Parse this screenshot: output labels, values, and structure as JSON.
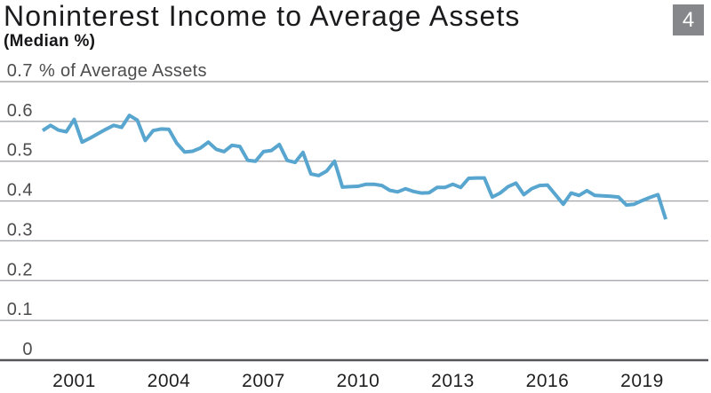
{
  "header": {
    "title": "Noninterest Income to Average Assets",
    "subtitle": "(Median %)",
    "slide_number": "4"
  },
  "colors": {
    "line": "#58a6cf",
    "gridline": "#a6a8ab",
    "baseline": "#55565a",
    "y_tick_text": "#4d4d4f",
    "x_tick_text": "#1f1f21",
    "title_text": "#1b1b1d",
    "badge_bg": "#85878a",
    "badge_text": "#ffffff"
  },
  "chart_data": {
    "type": "line",
    "title": "Noninterest Income to Average Assets",
    "subtitle": "(Median %)",
    "grid": "horizontal",
    "legend": "none",
    "ylim": [
      0,
      0.7
    ],
    "y_axis": {
      "ticks": [
        "0",
        "0.1",
        "0.2",
        "0.3",
        "0.4",
        "0.5",
        "0.6",
        "0.7"
      ],
      "unit_label": "% of Average Assets",
      "top_line_label": "0.7 % of Average Assets"
    },
    "x_axis": {
      "ticks": [
        "2001",
        "2004",
        "2007",
        "2010",
        "2013",
        "2016",
        "2019"
      ],
      "start": "2000 Q1",
      "end": "2019 Q4",
      "frequency": "quarterly"
    },
    "series": [
      {
        "name": "Median noninterest income to average assets (%)",
        "values": [
          0.577,
          0.59,
          0.578,
          0.574,
          0.605,
          0.548,
          0.558,
          0.569,
          0.58,
          0.59,
          0.585,
          0.615,
          0.603,
          0.552,
          0.577,
          0.581,
          0.58,
          0.545,
          0.523,
          0.525,
          0.533,
          0.548,
          0.53,
          0.524,
          0.54,
          0.537,
          0.502,
          0.5,
          0.524,
          0.527,
          0.542,
          0.502,
          0.497,
          0.522,
          0.468,
          0.464,
          0.475,
          0.5,
          0.435,
          0.436,
          0.437,
          0.442,
          0.442,
          0.439,
          0.427,
          0.423,
          0.431,
          0.424,
          0.42,
          0.421,
          0.434,
          0.434,
          0.442,
          0.434,
          0.457,
          0.458,
          0.458,
          0.41,
          0.42,
          0.436,
          0.445,
          0.416,
          0.431,
          0.439,
          0.44,
          0.416,
          0.392,
          0.42,
          0.414,
          0.426,
          0.414,
          0.413,
          0.412,
          0.41,
          0.39,
          0.392,
          0.401,
          0.409,
          0.416,
          0.354
        ]
      }
    ]
  }
}
